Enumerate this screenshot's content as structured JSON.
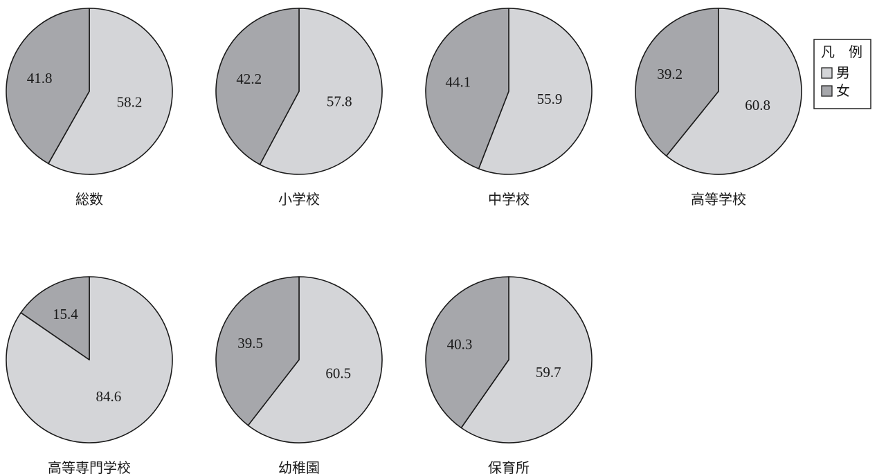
{
  "chart_data": {
    "type": "pie",
    "series_names": [
      "男",
      "女"
    ],
    "colors": {
      "男": "#d4d5d8",
      "女": "#a6a7ab"
    },
    "legend": {
      "title": "凡　例",
      "placement": "top-right",
      "items": [
        "男",
        "女"
      ]
    },
    "charts": [
      {
        "category": "総数",
        "男": 58.2,
        "女": 41.8,
        "male_label": "58.2",
        "female_label": "41.8"
      },
      {
        "category": "小学校",
        "男": 57.8,
        "女": 42.2,
        "male_label": "57.8",
        "female_label": "42.2"
      },
      {
        "category": "中学校",
        "男": 55.9,
        "女": 44.1,
        "male_label": "55.9",
        "female_label": "44.1"
      },
      {
        "category": "高等学校",
        "男": 60.8,
        "女": 39.2,
        "male_label": "60.8",
        "female_label": "39.2"
      },
      {
        "category": "高等専門学校",
        "男": 84.6,
        "女": 15.4,
        "male_label": "84.6",
        "female_label": "15.4"
      },
      {
        "category": "幼稚園",
        "男": 60.5,
        "女": 39.5,
        "male_label": "60.5",
        "female_label": "39.5"
      },
      {
        "category": "保育所",
        "男": 59.7,
        "女": 40.3,
        "male_label": "59.7",
        "female_label": "40.3"
      }
    ]
  }
}
